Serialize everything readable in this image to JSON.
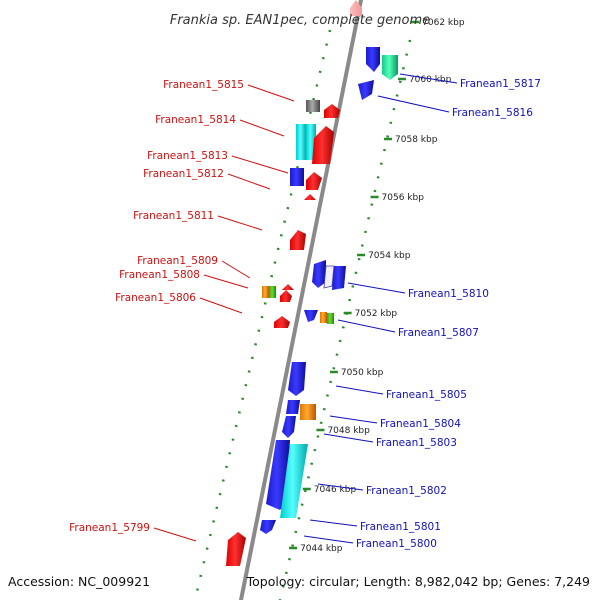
{
  "title": "Frankia sp. EAN1pec, complete genome",
  "footer": {
    "accession": "Accession: NC_009921",
    "topology": "Topology: circular; Length: 8,982,042 bp; Genes: 7,249"
  },
  "colors": {
    "left_labels": "#cc1111",
    "right_labels": "#1111bb",
    "backbone": "#8a8a8a",
    "dots": "#2a8a2a"
  },
  "scale_ticks": [
    {
      "label": "7062 kbp",
      "pos": 7062
    },
    {
      "label": "7060 kbp",
      "pos": 7060
    },
    {
      "label": "7058 kbp",
      "pos": 7058
    },
    {
      "label": "7056 kbp",
      "pos": 7056
    },
    {
      "label": "7054 kbp",
      "pos": 7054
    },
    {
      "label": "7052 kbp",
      "pos": 7052
    },
    {
      "label": "7050 kbp",
      "pos": 7050
    },
    {
      "label": "7048 kbp",
      "pos": 7048
    },
    {
      "label": "7046 kbp",
      "pos": 7046
    },
    {
      "label": "7044 kbp",
      "pos": 7044
    }
  ],
  "left_labels": [
    "Franean1_5815",
    "Franean1_5814",
    "Franean1_5813",
    "Franean1_5812",
    "Franean1_5811",
    "Franean1_5809",
    "Franean1_5808",
    "Franean1_5806",
    "Franean1_5799"
  ],
  "right_labels": [
    "Franean1_5817",
    "Franean1_5816",
    "Franean1_5810",
    "Franean1_5807",
    "Franean1_5805",
    "Franean1_5804",
    "Franean1_5803",
    "Franean1_5802",
    "Franean1_5801",
    "Franean1_5800"
  ]
}
